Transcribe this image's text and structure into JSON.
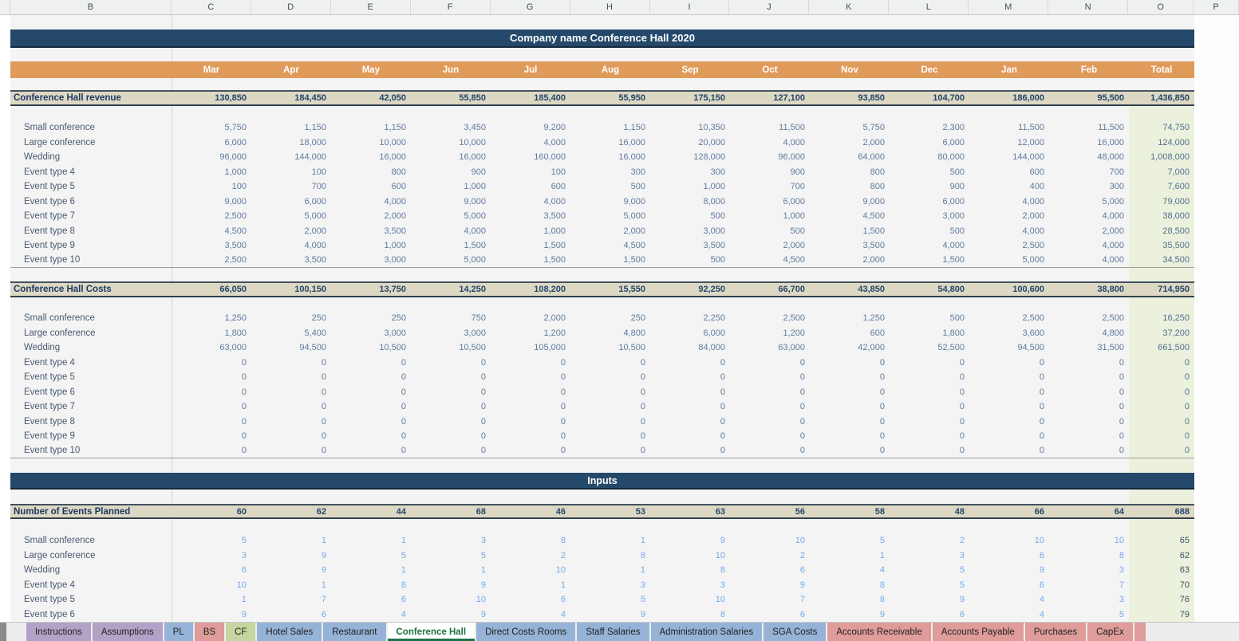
{
  "sheet": {
    "column_letters": [
      "B",
      "C",
      "D",
      "E",
      "F",
      "G",
      "H",
      "I",
      "J",
      "K",
      "L",
      "M",
      "N",
      "O",
      "P"
    ],
    "title": "Company name Conference Hall 2020",
    "months": [
      "Mar",
      "Apr",
      "May",
      "Jun",
      "Jul",
      "Aug",
      "Sep",
      "Oct",
      "Nov",
      "Dec",
      "Jan",
      "Feb"
    ],
    "total_header": "Total",
    "revenue": {
      "label": "Conference Hall revenue",
      "values": [
        "130,850",
        "184,450",
        "42,050",
        "55,850",
        "185,400",
        "55,950",
        "175,150",
        "127,100",
        "93,850",
        "104,700",
        "186,000",
        "95,500"
      ],
      "total": "1,436,850",
      "rows": [
        {
          "label": "Small conference",
          "values": [
            "5,750",
            "1,150",
            "1,150",
            "3,450",
            "9,200",
            "1,150",
            "10,350",
            "11,500",
            "5,750",
            "2,300",
            "11,500",
            "11,500"
          ],
          "total": "74,750"
        },
        {
          "label": "Large conference",
          "values": [
            "6,000",
            "18,000",
            "10,000",
            "10,000",
            "4,000",
            "16,000",
            "20,000",
            "4,000",
            "2,000",
            "6,000",
            "12,000",
            "16,000"
          ],
          "total": "124,000"
        },
        {
          "label": "Wedding",
          "values": [
            "96,000",
            "144,000",
            "16,000",
            "16,000",
            "160,000",
            "16,000",
            "128,000",
            "96,000",
            "64,000",
            "80,000",
            "144,000",
            "48,000"
          ],
          "total": "1,008,000"
        },
        {
          "label": "Event type 4",
          "values": [
            "1,000",
            "100",
            "800",
            "900",
            "100",
            "300",
            "300",
            "900",
            "800",
            "500",
            "600",
            "700"
          ],
          "total": "7,000"
        },
        {
          "label": "Event type 5",
          "values": [
            "100",
            "700",
            "600",
            "1,000",
            "600",
            "500",
            "1,000",
            "700",
            "800",
            "900",
            "400",
            "300"
          ],
          "total": "7,600"
        },
        {
          "label": "Event type 6",
          "values": [
            "9,000",
            "6,000",
            "4,000",
            "9,000",
            "4,000",
            "9,000",
            "8,000",
            "6,000",
            "9,000",
            "6,000",
            "4,000",
            "5,000"
          ],
          "total": "79,000"
        },
        {
          "label": "Event type 7",
          "values": [
            "2,500",
            "5,000",
            "2,000",
            "5,000",
            "3,500",
            "5,000",
            "500",
            "1,000",
            "4,500",
            "3,000",
            "2,000",
            "4,000"
          ],
          "total": "38,000"
        },
        {
          "label": "Event type 8",
          "values": [
            "4,500",
            "2,000",
            "3,500",
            "4,000",
            "1,000",
            "2,000",
            "3,000",
            "500",
            "1,500",
            "500",
            "4,000",
            "2,000"
          ],
          "total": "28,500"
        },
        {
          "label": "Event type 9",
          "values": [
            "3,500",
            "4,000",
            "1,000",
            "1,500",
            "1,500",
            "4,500",
            "3,500",
            "2,000",
            "3,500",
            "4,000",
            "2,500",
            "4,000"
          ],
          "total": "35,500"
        },
        {
          "label": "Event type 10",
          "values": [
            "2,500",
            "3,500",
            "3,000",
            "5,000",
            "1,500",
            "1,500",
            "500",
            "4,500",
            "2,000",
            "1,500",
            "5,000",
            "4,000"
          ],
          "total": "34,500"
        }
      ]
    },
    "costs": {
      "label": "Conference Hall Costs",
      "values": [
        "66,050",
        "100,150",
        "13,750",
        "14,250",
        "108,200",
        "15,550",
        "92,250",
        "66,700",
        "43,850",
        "54,800",
        "100,600",
        "38,800"
      ],
      "total": "714,950",
      "rows": [
        {
          "label": "Small conference",
          "values": [
            "1,250",
            "250",
            "250",
            "750",
            "2,000",
            "250",
            "2,250",
            "2,500",
            "1,250",
            "500",
            "2,500",
            "2,500"
          ],
          "total": "16,250"
        },
        {
          "label": "Large conference",
          "values": [
            "1,800",
            "5,400",
            "3,000",
            "3,000",
            "1,200",
            "4,800",
            "6,000",
            "1,200",
            "600",
            "1,800",
            "3,600",
            "4,800"
          ],
          "total": "37,200"
        },
        {
          "label": "Wedding",
          "values": [
            "63,000",
            "94,500",
            "10,500",
            "10,500",
            "105,000",
            "10,500",
            "84,000",
            "63,000",
            "42,000",
            "52,500",
            "94,500",
            "31,500"
          ],
          "total": "661,500"
        },
        {
          "label": "Event type 4",
          "values": [
            "0",
            "0",
            "0",
            "0",
            "0",
            "0",
            "0",
            "0",
            "0",
            "0",
            "0",
            "0"
          ],
          "total": "0"
        },
        {
          "label": "Event type 5",
          "values": [
            "0",
            "0",
            "0",
            "0",
            "0",
            "0",
            "0",
            "0",
            "0",
            "0",
            "0",
            "0"
          ],
          "total": "0"
        },
        {
          "label": "Event type 6",
          "values": [
            "0",
            "0",
            "0",
            "0",
            "0",
            "0",
            "0",
            "0",
            "0",
            "0",
            "0",
            "0"
          ],
          "total": "0"
        },
        {
          "label": "Event type 7",
          "values": [
            "0",
            "0",
            "0",
            "0",
            "0",
            "0",
            "0",
            "0",
            "0",
            "0",
            "0",
            "0"
          ],
          "total": "0"
        },
        {
          "label": "Event type 8",
          "values": [
            "0",
            "0",
            "0",
            "0",
            "0",
            "0",
            "0",
            "0",
            "0",
            "0",
            "0",
            "0"
          ],
          "total": "0"
        },
        {
          "label": "Event type 9",
          "values": [
            "0",
            "0",
            "0",
            "0",
            "0",
            "0",
            "0",
            "0",
            "0",
            "0",
            "0",
            "0"
          ],
          "total": "0"
        },
        {
          "label": "Event type 10",
          "values": [
            "0",
            "0",
            "0",
            "0",
            "0",
            "0",
            "0",
            "0",
            "0",
            "0",
            "0",
            "0"
          ],
          "total": "0"
        }
      ]
    },
    "inputs": {
      "banner": "Inputs",
      "header": {
        "label": "Number of Events Planned",
        "values": [
          "60",
          "62",
          "44",
          "68",
          "46",
          "53",
          "63",
          "56",
          "58",
          "48",
          "66",
          "64"
        ],
        "total": "688"
      },
      "rows": [
        {
          "label": "Small conference",
          "values": [
            "5",
            "1",
            "1",
            "3",
            "8",
            "1",
            "9",
            "10",
            "5",
            "2",
            "10",
            "10"
          ],
          "total": "65"
        },
        {
          "label": "Large conference",
          "values": [
            "3",
            "9",
            "5",
            "5",
            "2",
            "8",
            "10",
            "2",
            "1",
            "3",
            "6",
            "8"
          ],
          "total": "62"
        },
        {
          "label": "Wedding",
          "values": [
            "6",
            "9",
            "1",
            "1",
            "10",
            "1",
            "8",
            "6",
            "4",
            "5",
            "9",
            "3"
          ],
          "total": "63"
        },
        {
          "label": "Event type 4",
          "values": [
            "10",
            "1",
            "8",
            "9",
            "1",
            "3",
            "3",
            "9",
            "8",
            "5",
            "6",
            "7"
          ],
          "total": "70"
        },
        {
          "label": "Event type 5",
          "values": [
            "1",
            "7",
            "6",
            "10",
            "6",
            "5",
            "10",
            "7",
            "8",
            "9",
            "4",
            "3"
          ],
          "total": "76"
        },
        {
          "label": "Event type 6",
          "values": [
            "9",
            "6",
            "4",
            "9",
            "4",
            "9",
            "8",
            "6",
            "9",
            "6",
            "4",
            "5"
          ],
          "total": "79"
        }
      ]
    },
    "tabs": [
      {
        "label": "Instructions",
        "color": "#b3a2c7",
        "active": false
      },
      {
        "label": "Assumptions",
        "color": "#b3a2c7",
        "active": false
      },
      {
        "label": "PL",
        "color": "#95b3d7",
        "active": false
      },
      {
        "label": "BS",
        "color": "#df9c9b",
        "active": false
      },
      {
        "label": "CF",
        "color": "#c5d79f",
        "active": false
      },
      {
        "label": "Hotel Sales",
        "color": "#95b3d7",
        "active": false
      },
      {
        "label": "Restaurant",
        "color": "#95b3d7",
        "active": false
      },
      {
        "label": "Conference Hall",
        "color": "#ffffff",
        "active": true
      },
      {
        "label": "Direct Costs Rooms",
        "color": "#95b3d7",
        "active": false
      },
      {
        "label": "Staff Salaries",
        "color": "#95b3d7",
        "active": false
      },
      {
        "label": "Administration Salaries",
        "color": "#95b3d7",
        "active": false
      },
      {
        "label": "SGA Costs",
        "color": "#95b3d7",
        "active": false
      },
      {
        "label": "Accounts Receivable",
        "color": "#df9c9b",
        "active": false
      },
      {
        "label": "Accounts Payable",
        "color": "#df9c9b",
        "active": false
      },
      {
        "label": "Purchases",
        "color": "#df9c9b",
        "active": false
      },
      {
        "label": "CapEx",
        "color": "#df9c9b",
        "active": false
      }
    ],
    "colors": {
      "navy": "#25496b",
      "orange": "#e09b5b",
      "beige": "#ddd8c3",
      "total_column_green": "#ebf1dd",
      "active_tab_green": "#1e7145"
    }
  }
}
